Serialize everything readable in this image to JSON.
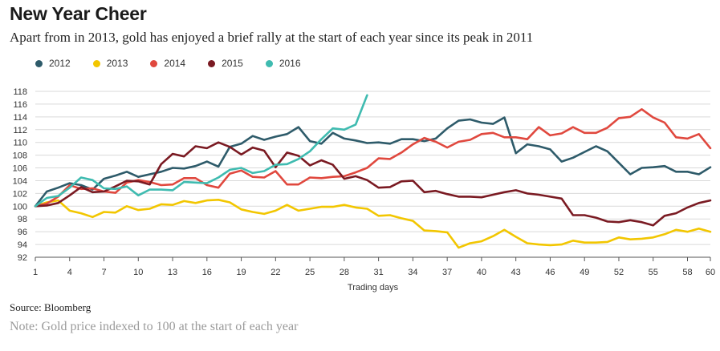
{
  "header": {
    "title": "New Year Cheer",
    "subtitle": "Apart from in 2013, gold has enjoyed a brief rally at the start of each year since its peak in 2011"
  },
  "footer": {
    "source": "Source: Bloomberg",
    "note": "Note: Gold price indexed to 100 at the start of each year"
  },
  "chart_data": {
    "type": "line",
    "title": "New Year Cheer",
    "xlabel": "Trading days",
    "ylabel": "",
    "xlim": [
      1,
      60
    ],
    "ylim": [
      92,
      118
    ],
    "x_ticks": [
      1,
      4,
      7,
      10,
      13,
      16,
      19,
      22,
      25,
      28,
      31,
      34,
      37,
      40,
      43,
      46,
      49,
      52,
      55,
      58,
      60
    ],
    "y_ticks": [
      92,
      94,
      96,
      98,
      100,
      102,
      104,
      106,
      108,
      110,
      112,
      114,
      116,
      118
    ],
    "grid": true,
    "legend_position": "top-left",
    "series": [
      {
        "name": "2012",
        "color": "#2e5b6a",
        "values": [
          100,
          102.3,
          102.9,
          103.6,
          103.3,
          102.6,
          104.3,
          104.8,
          105.4,
          104.6,
          105.0,
          105.4,
          106.0,
          105.9,
          106.3,
          107.0,
          106.2,
          109.3,
          109.8,
          111.0,
          110.4,
          110.9,
          111.3,
          112.4,
          110.2,
          109.8,
          111.5,
          110.6,
          110.3,
          109.9,
          110.0,
          109.8,
          110.5,
          110.5,
          110.2,
          110.6,
          112.2,
          113.4,
          113.6,
          113.1,
          112.9,
          113.9,
          108.3,
          109.7,
          109.4,
          108.9,
          107.0,
          107.6,
          108.5,
          109.4,
          108.6,
          106.8,
          105.0,
          106.0,
          106.1,
          106.3,
          105.4,
          105.4,
          105.0,
          106.1
        ]
      },
      {
        "name": "2013",
        "color": "#f2c600",
        "values": [
          100,
          100.6,
          100.9,
          99.3,
          98.9,
          98.3,
          99.1,
          99.0,
          100.0,
          99.4,
          99.6,
          100.3,
          100.2,
          100.8,
          100.5,
          100.9,
          101.0,
          100.6,
          99.5,
          99.1,
          98.8,
          99.3,
          100.2,
          99.3,
          99.6,
          99.9,
          99.9,
          100.2,
          99.8,
          99.6,
          98.5,
          98.6,
          98.1,
          97.7,
          96.2,
          96.1,
          95.9,
          93.5,
          94.2,
          94.5,
          95.3,
          96.3,
          95.2,
          94.2,
          94.0,
          93.9,
          94.0,
          94.6,
          94.3,
          94.3,
          94.4,
          95.1,
          94.8,
          94.9,
          95.1,
          95.6,
          96.3,
          96.0,
          96.5,
          96.0
        ]
      },
      {
        "name": "2014",
        "color": "#e0483e",
        "values": [
          100,
          100.4,
          101.5,
          103.3,
          102.7,
          102.8,
          102.3,
          102.1,
          103.7,
          104.1,
          103.8,
          103.3,
          103.4,
          104.4,
          104.4,
          103.3,
          102.9,
          105.1,
          105.6,
          104.6,
          104.5,
          105.5,
          103.4,
          103.4,
          104.5,
          104.4,
          104.6,
          104.7,
          105.3,
          106.0,
          107.5,
          107.4,
          108.4,
          109.7,
          110.7,
          110.1,
          109.2,
          110.1,
          110.4,
          111.3,
          111.5,
          110.8,
          110.8,
          110.5,
          112.4,
          111.1,
          111.4,
          112.4,
          111.5,
          111.5,
          112.3,
          113.8,
          114.0,
          115.2,
          113.9,
          113.1,
          110.8,
          110.6,
          111.3,
          109.1
        ]
      },
      {
        "name": "2015",
        "color": "#7a1a22",
        "values": [
          100,
          100.1,
          100.5,
          101.7,
          103.0,
          102.2,
          102.3,
          103.1,
          104.0,
          103.9,
          103.4,
          106.6,
          108.2,
          107.8,
          109.4,
          109.1,
          110.0,
          109.3,
          108.1,
          109.2,
          108.7,
          106.1,
          108.4,
          107.9,
          106.4,
          107.2,
          106.5,
          104.3,
          104.7,
          104.1,
          102.9,
          103.0,
          103.9,
          104.0,
          102.2,
          102.4,
          101.9,
          101.5,
          101.5,
          101.4,
          101.8,
          102.2,
          102.5,
          102.0,
          101.8,
          101.5,
          101.2,
          98.6,
          98.6,
          98.2,
          97.6,
          97.5,
          97.8,
          97.5,
          97.0,
          98.5,
          98.9,
          99.8,
          100.5,
          100.9
        ]
      },
      {
        "name": "2016",
        "color": "#3fbbb0",
        "values": [
          100,
          101.3,
          101.6,
          102.9,
          104.5,
          104.1,
          102.8,
          102.7,
          103.1,
          101.7,
          102.6,
          102.6,
          102.5,
          103.8,
          103.7,
          103.6,
          104.5,
          105.7,
          106.0,
          105.2,
          105.5,
          106.5,
          106.6,
          107.4,
          108.6,
          110.5,
          112.2,
          112.0,
          112.8,
          117.4
        ]
      }
    ]
  }
}
